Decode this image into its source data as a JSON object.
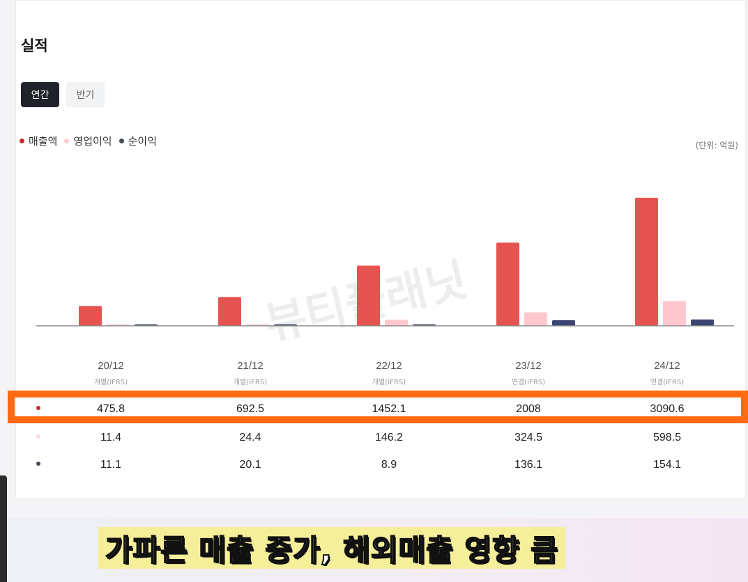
{
  "title": "실적",
  "tabs": [
    {
      "label": "연간",
      "active": true
    },
    {
      "label": "반기",
      "active": false
    }
  ],
  "unit_label": "(단위: 억원)",
  "watermark": "뷰티플래닛",
  "caption": "가파른 매출 증가, 해외매출 영향 큼",
  "colors": {
    "revenue": "#e55451",
    "operating_profit": "#ffc8cf",
    "net_income": "#3b4472",
    "highlight": "#ff6a13"
  },
  "chart_data": {
    "type": "bar",
    "title": "실적",
    "categories": [
      "20/12",
      "21/12",
      "22/12",
      "23/12",
      "24/12"
    ],
    "sublabels": [
      "개별(IFRS)",
      "개별(IFRS)",
      "개별(IFRS)",
      "연결(IFRS)",
      "연결(IFRS)"
    ],
    "series": [
      {
        "name": "매출액",
        "values": [
          475.8,
          692.5,
          1452.1,
          2008,
          3090.6
        ]
      },
      {
        "name": "영업이익",
        "values": [
          11.4,
          24.4,
          146.2,
          324.5,
          598.5
        ]
      },
      {
        "name": "순이익",
        "values": [
          11.1,
          20.1,
          8.9,
          136.1,
          154.1
        ]
      }
    ],
    "ylim": [
      0,
      3090.6
    ],
    "legend_position": "top-left",
    "grid": false
  }
}
